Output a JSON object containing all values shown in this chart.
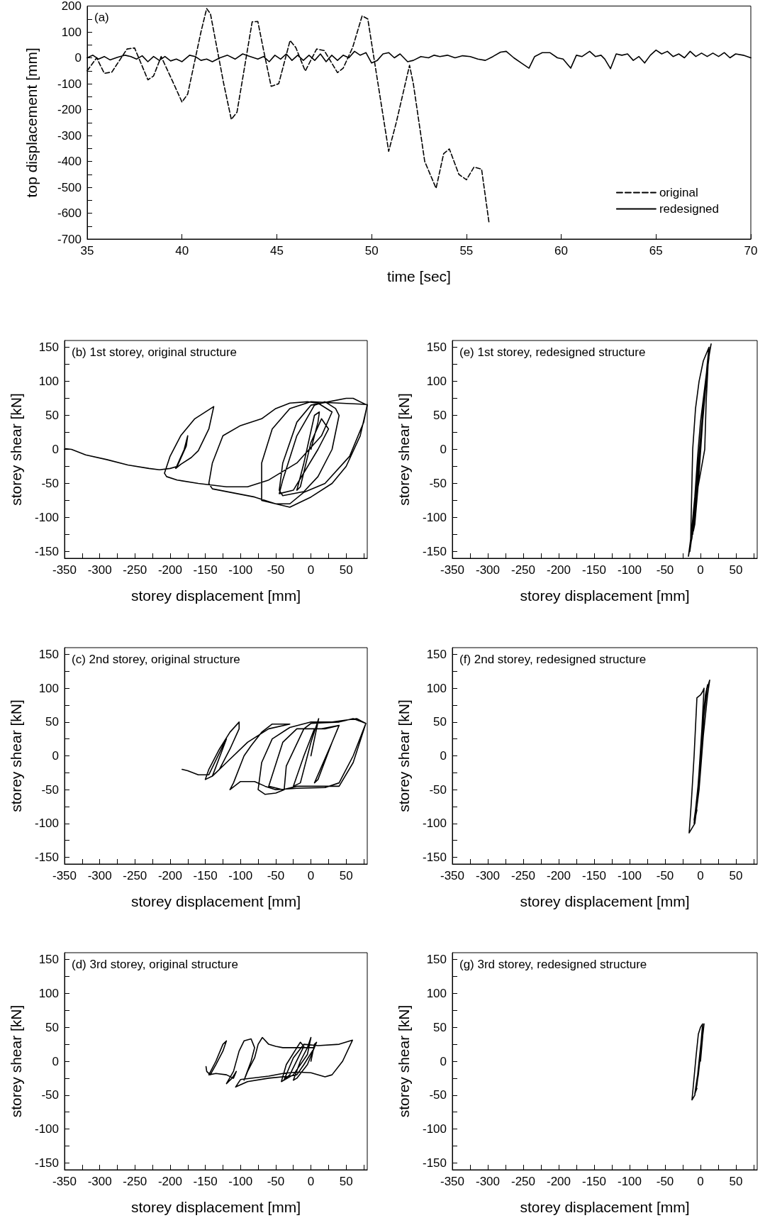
{
  "chart_data": [
    {
      "type": "line",
      "title": "(a)",
      "xlabel": "time [sec]",
      "ylabel": "top displacement [mm]",
      "xlim": [
        35,
        70
      ],
      "ylim": [
        -700,
        200
      ],
      "xticks": [
        35,
        40,
        45,
        50,
        55,
        60,
        65,
        70
      ],
      "yticks": [
        -700,
        -600,
        -500,
        -400,
        -300,
        -200,
        -100,
        0,
        100,
        200,
        {
          "value": -650,
          "label": null
        },
        {
          "value": -550,
          "label": null
        },
        {
          "value": -450,
          "label": null
        },
        {
          "value": -350,
          "label": null
        },
        {
          "value": -250,
          "label": null
        },
        {
          "value": -150,
          "label": null
        },
        {
          "value": -50,
          "label": null
        },
        {
          "value": 50,
          "label": null
        },
        {
          "value": 150,
          "label": null
        }
      ],
      "marker": "none",
      "legend": "bottom right",
      "series": [
        {
          "name": "original",
          "color": "#000000",
          "line_style": "dashed",
          "x": [
            35,
            35.5,
            35.9,
            36.3,
            37.1,
            37.5,
            38.2,
            38.5,
            38.9,
            39.5,
            40,
            40.3,
            41,
            41.3,
            41.5,
            42.2,
            42.6,
            42.9,
            43.7,
            44,
            44.3,
            44.7,
            45.1,
            45.7,
            46,
            46.5,
            47.1,
            47.5,
            48.2,
            48.5,
            49,
            49.5,
            49.8,
            50.1,
            50.9,
            51.3,
            52,
            52.2,
            52.8,
            53.4,
            53.8,
            54.1,
            54.6,
            55,
            55.4,
            55.8,
            56.2
          ],
          "values": [
            -50,
            0,
            -60,
            -55,
            34,
            38,
            -85,
            -70,
            5,
            -90,
            -171,
            -140,
            100,
            190,
            170,
            -100,
            -238,
            -210,
            139,
            140,
            30,
            -110,
            -100,
            67,
            40,
            -51,
            34,
            28,
            -57,
            -40,
            40,
            162,
            150,
            10,
            -361,
            -250,
            -29,
            -100,
            -400,
            -504,
            -370,
            -352,
            -450,
            -471,
            -422,
            -430,
            -641
          ]
        },
        {
          "name": "redesigned",
          "color": "#000000",
          "line_style": "solid",
          "x": [
            35,
            35.3,
            35.6,
            35.9,
            36.2,
            36.6,
            37,
            37.3,
            37.6,
            37.9,
            38.2,
            38.5,
            38.8,
            39.1,
            39.4,
            39.7,
            40,
            40.4,
            40.7,
            41,
            41.3,
            41.6,
            42,
            42.4,
            42.8,
            43.2,
            43.6,
            44,
            44.3,
            44.6,
            44.9,
            45.2,
            45.5,
            45.8,
            46.1,
            46.4,
            46.7,
            47,
            47.3,
            47.6,
            47.9,
            48.2,
            48.5,
            48.8,
            49.1,
            49.4,
            49.7,
            50,
            50.3,
            50.6,
            50.9,
            51.2,
            51.5,
            51.9,
            52.2,
            52.6,
            53,
            53.3,
            53.6,
            54,
            54.4,
            54.8,
            55.2,
            55.6,
            56,
            56.4,
            56.8,
            57.1,
            57.5,
            57.9,
            58.3,
            58.6,
            59,
            59.4,
            59.8,
            60.1,
            60.5,
            60.8,
            61.1,
            61.5,
            61.8,
            62.1,
            62.3,
            62.6,
            62.9,
            63.2,
            63.5,
            63.8,
            64.1,
            64.4,
            64.7,
            65,
            65.3,
            65.6,
            65.9,
            66.2,
            66.5,
            66.8,
            67.1,
            67.4,
            67.7,
            68,
            68.3,
            68.6,
            68.9,
            69.2,
            69.6,
            70
          ],
          "values": [
            0,
            10,
            -5,
            5,
            -8,
            2,
            10,
            5,
            -5,
            8,
            -15,
            5,
            -10,
            5,
            -12,
            -5,
            -15,
            10,
            5,
            -10,
            -5,
            -15,
            0,
            10,
            -5,
            15,
            5,
            -5,
            5,
            -15,
            10,
            -5,
            15,
            -10,
            10,
            -10,
            10,
            -10,
            15,
            -15,
            10,
            -10,
            10,
            0,
            25,
            10,
            20,
            -20,
            -10,
            15,
            20,
            0,
            15,
            -15,
            -10,
            5,
            0,
            10,
            5,
            10,
            0,
            8,
            5,
            -5,
            -10,
            5,
            22,
            25,
            0,
            -20,
            -40,
            5,
            20,
            20,
            0,
            -5,
            -40,
            10,
            5,
            25,
            5,
            10,
            -5,
            -42,
            15,
            10,
            15,
            -10,
            5,
            -20,
            10,
            30,
            15,
            25,
            5,
            15,
            0,
            25,
            5,
            18,
            5,
            18,
            5,
            20,
            0,
            15,
            10,
            0
          ]
        }
      ]
    },
    {
      "type": "line",
      "title": "(b) 1st storey, original structure",
      "xlabel": "storey displacement [mm]",
      "ylabel": "storey shear [kN]",
      "xlim": [
        -350,
        80
      ],
      "ylim": [
        -160,
        160
      ],
      "xticks": [
        -350,
        -300,
        -250,
        -200,
        -150,
        -100,
        -50,
        0,
        50,
        {
          "value": -325,
          "label": null
        },
        {
          "value": -275,
          "label": null
        },
        {
          "value": -225,
          "label": null
        },
        {
          "value": -175,
          "label": null
        },
        {
          "value": -125,
          "label": null
        },
        {
          "value": -75,
          "label": null
        },
        {
          "value": -25,
          "label": null
        },
        {
          "value": 25,
          "label": null
        },
        {
          "value": 75,
          "label": null
        }
      ],
      "yticks": [
        -150,
        -100,
        -50,
        0,
        50,
        100,
        150,
        {
          "value": -125,
          "label": null
        },
        {
          "value": -75,
          "label": null
        },
        {
          "value": -25,
          "label": null
        },
        {
          "value": 25,
          "label": null
        },
        {
          "value": 75,
          "label": null
        },
        {
          "value": 125,
          "label": null
        }
      ],
      "marker": "none",
      "series": [
        {
          "color": "#000000",
          "line_style": "solid",
          "x": [
            0,
            10,
            12,
            5,
            -10,
            -20,
            -15,
            0,
            15,
            25,
            10,
            -25,
            -45,
            -40,
            -20,
            5,
            20,
            35,
            40,
            30,
            10,
            -10,
            -40,
            -45,
            -40,
            -20,
            0,
            25,
            50,
            60,
            80,
            70,
            50,
            30,
            0,
            -30,
            -50,
            -70,
            -70,
            -55,
            -30,
            0,
            40,
            80,
            75,
            55,
            20,
            -10,
            -30,
            -50,
            -80,
            -140,
            -145,
            -140,
            -125,
            -100,
            -70,
            -50,
            -30,
            -5,
            10,
            30,
            15,
            -20,
            -60,
            -90,
            -120,
            -160,
            -190,
            -205,
            -208,
            -200,
            -185,
            -165,
            -138,
            -145,
            -160,
            -170,
            -185,
            -192,
            -180,
            -175,
            -177,
            -190,
            -200,
            -215,
            -230,
            -260,
            -290,
            -320,
            -340,
            -348,
            -350
          ],
          "values": [
            0,
            40,
            55,
            50,
            -20,
            -60,
            -55,
            10,
            45,
            30,
            0,
            -60,
            -65,
            -45,
            20,
            65,
            70,
            60,
            50,
            0,
            -40,
            -62,
            -68,
            -60,
            -20,
            40,
            65,
            70,
            75,
            75,
            65,
            20,
            -25,
            -50,
            -70,
            -85,
            -80,
            -75,
            -20,
            30,
            60,
            70,
            68,
            66,
            40,
            -10,
            -50,
            -63,
            -80,
            -80,
            -70,
            -58,
            -50,
            -20,
            20,
            35,
            45,
            60,
            68,
            70,
            68,
            55,
            20,
            -20,
            -45,
            -55,
            -55,
            -50,
            -45,
            -40,
            -35,
            -10,
            20,
            45,
            63,
            30,
            -2,
            -12,
            -22,
            -28,
            0,
            20,
            5,
            -25,
            -28,
            -30,
            -28,
            -23,
            -15,
            -8,
            0,
            1,
            0
          ]
        }
      ]
    },
    {
      "type": "line",
      "title": "(e) 1st storey, redesigned structure",
      "xlabel": "storey displacement [mm]",
      "ylabel": "storey shear [kN]",
      "xlim": [
        -350,
        80
      ],
      "ylim": [
        -160,
        160
      ],
      "xticks": [
        -350,
        -300,
        -250,
        -200,
        -150,
        -100,
        -50,
        0,
        50,
        {
          "value": -325,
          "label": null
        },
        {
          "value": -275,
          "label": null
        },
        {
          "value": -225,
          "label": null
        },
        {
          "value": -175,
          "label": null
        },
        {
          "value": -125,
          "label": null
        },
        {
          "value": -75,
          "label": null
        },
        {
          "value": -25,
          "label": null
        },
        {
          "value": 25,
          "label": null
        },
        {
          "value": 75,
          "label": null
        }
      ],
      "yticks": [
        -150,
        -100,
        -50,
        0,
        50,
        100,
        150,
        {
          "value": -125,
          "label": null
        },
        {
          "value": -75,
          "label": null
        },
        {
          "value": -25,
          "label": null
        },
        {
          "value": 25,
          "label": null
        },
        {
          "value": 75,
          "label": null
        },
        {
          "value": 125,
          "label": null
        }
      ],
      "marker": "none",
      "series": [
        {
          "color": "#000000",
          "line_style": "solid",
          "x": [
            0,
            6,
            10,
            12,
            9,
            3,
            -3,
            -8,
            -11,
            -8,
            -2,
            4,
            9,
            13,
            10,
            4,
            -2,
            -7,
            -12,
            -14,
            -10,
            -4,
            2,
            7,
            11,
            14,
            11,
            8,
            6,
            -6,
            -11,
            -15,
            -12,
            -5,
            1,
            6,
            10,
            15,
            13,
            7,
            0,
            -4,
            -8,
            -13,
            -17,
            -14,
            -11,
            -7,
            -2,
            4,
            12,
            9,
            3,
            -3,
            -8,
            -10,
            -5
          ],
          "values": [
            0,
            80,
            120,
            135,
            110,
            40,
            -40,
            -100,
            -125,
            -95,
            -20,
            60,
            115,
            145,
            125,
            60,
            -10,
            -80,
            -130,
            -140,
            -105,
            -30,
            40,
            100,
            135,
            150,
            130,
            70,
            0,
            -70,
            -120,
            -150,
            -125,
            -50,
            20,
            90,
            125,
            155,
            145,
            100,
            40,
            -10,
            -70,
            -125,
            -157,
            -140,
            0,
            60,
            100,
            130,
            150,
            120,
            40,
            -50,
            -110,
            -120,
            -60
          ]
        }
      ]
    },
    {
      "type": "line",
      "title": "(c) 2nd storey, original structure",
      "xlabel": "storey displacement [mm]",
      "ylabel": "storey shear [kN]",
      "xlim": [
        -350,
        80
      ],
      "ylim": [
        -160,
        160
      ],
      "xticks": [
        -350,
        -300,
        -250,
        -200,
        -150,
        -100,
        -50,
        0,
        50,
        {
          "value": -325,
          "label": null
        },
        {
          "value": -275,
          "label": null
        },
        {
          "value": -225,
          "label": null
        },
        {
          "value": -175,
          "label": null
        },
        {
          "value": -125,
          "label": null
        },
        {
          "value": -75,
          "label": null
        },
        {
          "value": -25,
          "label": null
        },
        {
          "value": 25,
          "label": null
        },
        {
          "value": 75,
          "label": null
        }
      ],
      "yticks": [
        -150,
        -100,
        -50,
        0,
        50,
        100,
        150,
        {
          "value": -125,
          "label": null
        },
        {
          "value": -75,
          "label": null
        },
        {
          "value": -25,
          "label": null
        },
        {
          "value": 25,
          "label": null
        },
        {
          "value": 75,
          "label": null
        },
        {
          "value": 125,
          "label": null
        }
      ],
      "marker": "none",
      "series": [
        {
          "color": "#000000",
          "line_style": "solid",
          "x": [
            0,
            10,
            11,
            0,
            -15,
            -25,
            -10,
            5,
            15,
            40,
            30,
            5,
            10,
            30,
            40,
            20,
            -20,
            -40,
            -60,
            -40,
            -20,
            10,
            40,
            60,
            78,
            60,
            40,
            0,
            -10,
            -35,
            -38,
            -50,
            -65,
            -75,
            -70,
            -55,
            -30,
            0,
            30,
            65,
            78,
            60,
            40,
            20,
            -20,
            -50,
            -65,
            -80,
            -100,
            -115,
            -110,
            -95,
            -85,
            -70,
            -55,
            -30,
            -60,
            -90,
            -120,
            -140,
            -150,
            -145,
            -130,
            -115,
            -102,
            -102,
            -115,
            -130,
            -140,
            -120,
            -125,
            -145,
            -160,
            -175,
            -183
          ],
          "values": [
            0,
            50,
            55,
            20,
            -40,
            -45,
            0,
            40,
            40,
            45,
            20,
            -40,
            -35,
            20,
            45,
            40,
            40,
            20,
            -45,
            -50,
            -45,
            -45,
            -45,
            -10,
            48,
            55,
            50,
            48,
            40,
            -15,
            -50,
            -55,
            -57,
            -50,
            -10,
            25,
            42,
            50,
            50,
            55,
            48,
            0,
            -40,
            -47,
            -48,
            -50,
            -45,
            -38,
            -38,
            -50,
            -40,
            0,
            15,
            35,
            47,
            47,
            40,
            20,
            -10,
            -30,
            -35,
            -20,
            10,
            35,
            50,
            40,
            10,
            -20,
            -30,
            25,
            15,
            -28,
            -28,
            -22,
            -20
          ]
        }
      ]
    },
    {
      "type": "line",
      "title": "(f) 2nd storey, redesigned structure",
      "xlabel": "storey displacement [mm]",
      "ylabel": "storey shear [kN]",
      "xlim": [
        -350,
        80
      ],
      "ylim": [
        -160,
        160
      ],
      "xticks": [
        -350,
        -300,
        -250,
        -200,
        -150,
        -100,
        -50,
        0,
        50,
        {
          "value": -325,
          "label": null
        },
        {
          "value": -275,
          "label": null
        },
        {
          "value": -225,
          "label": null
        },
        {
          "value": -175,
          "label": null
        },
        {
          "value": -125,
          "label": null
        },
        {
          "value": -75,
          "label": null
        },
        {
          "value": -25,
          "label": null
        },
        {
          "value": 25,
          "label": null
        },
        {
          "value": 75,
          "label": null
        }
      ],
      "yticks": [
        -150,
        -100,
        -50,
        0,
        50,
        100,
        150,
        {
          "value": -125,
          "label": null
        },
        {
          "value": -75,
          "label": null
        },
        {
          "value": -25,
          "label": null
        },
        {
          "value": 25,
          "label": null
        },
        {
          "value": 75,
          "label": null
        },
        {
          "value": 125,
          "label": null
        }
      ],
      "marker": "none",
      "series": [
        {
          "color": "#000000",
          "line_style": "solid",
          "x": [
            0,
            4,
            7,
            9,
            6,
            1,
            -4,
            -7,
            -5,
            0,
            5,
            10,
            7,
            2,
            -3,
            -9,
            -6,
            -1,
            4,
            8,
            13,
            10,
            4,
            -2,
            -8,
            -16,
            -13,
            -9,
            -5,
            0,
            3,
            5,
            2,
            -3,
            -9,
            -5
          ],
          "values": [
            0,
            60,
            90,
            100,
            80,
            10,
            -60,
            -85,
            -70,
            -10,
            60,
            105,
            90,
            20,
            -50,
            -95,
            -80,
            -10,
            50,
            95,
            112,
            90,
            30,
            -50,
            -100,
            -114,
            -70,
            0,
            86,
            90,
            95,
            100,
            40,
            -40,
            -100,
            -80
          ]
        }
      ]
    },
    {
      "type": "line",
      "title": "(d) 3rd storey, original structure",
      "xlabel": "storey displacement [mm]",
      "ylabel": "storey shear [kN]",
      "xlim": [
        -350,
        80
      ],
      "ylim": [
        -160,
        160
      ],
      "xticks": [
        -350,
        -300,
        -250,
        -200,
        -150,
        -100,
        -50,
        0,
        50,
        {
          "value": -325,
          "label": null
        },
        {
          "value": -275,
          "label": null
        },
        {
          "value": -225,
          "label": null
        },
        {
          "value": -175,
          "label": null
        },
        {
          "value": -125,
          "label": null
        },
        {
          "value": -75,
          "label": null
        },
        {
          "value": -25,
          "label": null
        },
        {
          "value": 25,
          "label": null
        },
        {
          "value": 75,
          "label": null
        }
      ],
      "yticks": [
        -150,
        -100,
        -50,
        0,
        50,
        100,
        150,
        {
          "value": -125,
          "label": null
        },
        {
          "value": -75,
          "label": null
        },
        {
          "value": -25,
          "label": null
        },
        {
          "value": 25,
          "label": null
        },
        {
          "value": 75,
          "label": null
        },
        {
          "value": 125,
          "label": null
        }
      ],
      "marker": "none",
      "series": [
        {
          "color": "#000000",
          "line_style": "solid",
          "x": [
            0,
            5,
            8,
            -5,
            -20,
            -25,
            -15,
            -5,
            0,
            -5,
            -25,
            -42,
            -35,
            -20,
            -15,
            -10,
            -30,
            -38,
            -25,
            -10,
            10,
            40,
            59,
            45,
            30,
            20,
            0,
            -20,
            -40,
            -60,
            -100,
            -107,
            -90,
            -60,
            -30,
            -20,
            -10,
            5,
            -15,
            -40,
            -50,
            -60,
            -69,
            -75,
            -80,
            -90,
            -95,
            -85,
            -80,
            -85,
            -95,
            -102,
            -110,
            -120,
            -112,
            -106,
            -110,
            -120,
            -135,
            -145,
            -135,
            -125,
            -120,
            -125,
            -135,
            -143,
            -148,
            -149
          ],
          "values": [
            0,
            25,
            28,
            -5,
            -25,
            -28,
            0,
            20,
            35,
            10,
            -20,
            -30,
            -5,
            20,
            28,
            22,
            -20,
            -27,
            5,
            25,
            23,
            25,
            31,
            0,
            -20,
            -23,
            -17,
            -16,
            -18,
            -22,
            -27,
            -38,
            -30,
            -25,
            -22,
            -20,
            -5,
            20,
            20,
            20,
            22,
            25,
            35,
            25,
            5,
            -15,
            -28,
            0,
            20,
            33,
            30,
            15,
            -15,
            -33,
            -25,
            -15,
            -25,
            -20,
            -18,
            -20,
            0,
            25,
            30,
            15,
            -5,
            -20,
            -15,
            -8
          ]
        }
      ]
    },
    {
      "type": "line",
      "title": "(g) 3rd storey, redesigned structure",
      "xlabel": "storey displacement [mm]",
      "ylabel": "storey shear [kN]",
      "xlim": [
        -350,
        80
      ],
      "ylim": [
        -160,
        160
      ],
      "xticks": [
        -350,
        -300,
        -250,
        -200,
        -150,
        -100,
        -50,
        0,
        50,
        {
          "value": -325,
          "label": null
        },
        {
          "value": -275,
          "label": null
        },
        {
          "value": -225,
          "label": null
        },
        {
          "value": -175,
          "label": null
        },
        {
          "value": -125,
          "label": null
        },
        {
          "value": -75,
          "label": null
        },
        {
          "value": -25,
          "label": null
        },
        {
          "value": 25,
          "label": null
        },
        {
          "value": 75,
          "label": null
        }
      ],
      "yticks": [
        -150,
        -100,
        -50,
        0,
        50,
        100,
        150,
        {
          "value": -125,
          "label": null
        },
        {
          "value": -75,
          "label": null
        },
        {
          "value": -25,
          "label": null
        },
        {
          "value": 25,
          "label": null
        },
        {
          "value": 75,
          "label": null
        },
        {
          "value": 125,
          "label": null
        }
      ],
      "marker": "none",
      "series": [
        {
          "color": "#000000",
          "line_style": "solid",
          "x": [
            0,
            3,
            4,
            2,
            -3,
            -7,
            -5,
            0,
            4,
            5,
            3,
            -2,
            -8,
            -12,
            -10,
            -6,
            -3,
            0,
            3,
            1,
            -4,
            -8,
            -5
          ],
          "values": [
            0,
            35,
            50,
            30,
            -20,
            -45,
            -35,
            10,
            45,
            55,
            40,
            -10,
            -50,
            -57,
            -35,
            10,
            40,
            50,
            55,
            30,
            -20,
            -48,
            -40
          ]
        }
      ]
    }
  ]
}
